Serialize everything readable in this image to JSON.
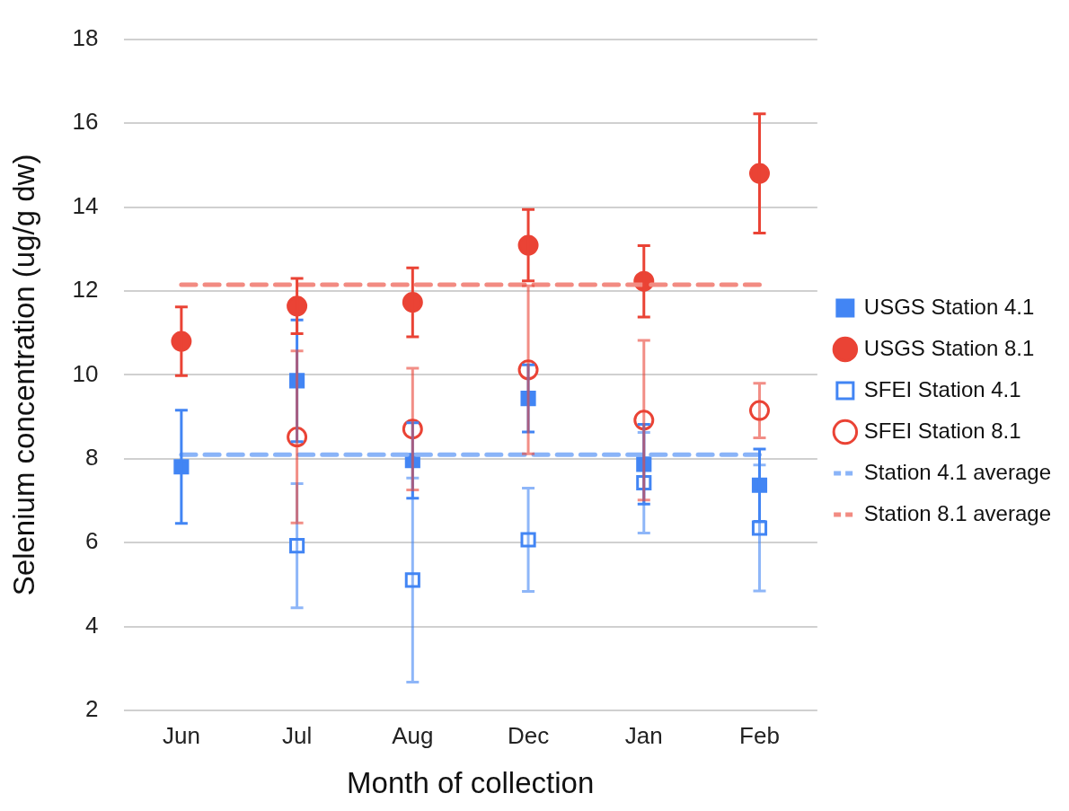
{
  "chart_data": {
    "type": "scatter",
    "xlabel": "Month of collection",
    "ylabel": "Selenium concentration (ug/g dw)",
    "categories": [
      "Jun",
      "Jul",
      "Aug",
      "Dec",
      "Jan",
      "Feb"
    ],
    "ylim": [
      2,
      18
    ],
    "yticks": [
      2,
      4,
      6,
      8,
      10,
      12,
      14,
      16,
      18
    ],
    "grid": "y",
    "legend": "right",
    "series": [
      {
        "name": "USGS Station 4.1",
        "color": "#4285f4",
        "marker": "square",
        "values": [
          7.81,
          9.86,
          7.96,
          9.44,
          7.87,
          7.37
        ],
        "errors": [
          1.35,
          1.45,
          0.9,
          0.8,
          0.95,
          0.86
        ]
      },
      {
        "name": "USGS Station 8.1",
        "color": "#ea4335",
        "marker": "circle",
        "values": [
          10.8,
          11.64,
          11.73,
          13.09,
          12.23,
          14.8
        ],
        "errors": [
          0.82,
          0.66,
          0.82,
          0.85,
          0.85,
          1.42
        ]
      },
      {
        "name": "SFEI Station 4.1",
        "color": "#4285f4",
        "marker": "square-open",
        "values": [
          null,
          5.93,
          5.11,
          6.07,
          7.43,
          6.35
        ],
        "errors": [
          null,
          1.48,
          2.43,
          1.23,
          1.2,
          1.5
        ]
      },
      {
        "name": "SFEI Station 8.1",
        "color": "#ea4335",
        "marker": "circle-open",
        "values": [
          null,
          8.52,
          8.71,
          10.12,
          8.92,
          9.15
        ],
        "errors": [
          null,
          2.05,
          1.45,
          2.0,
          1.9,
          0.65
        ]
      },
      {
        "name": "Station 4.1 average",
        "type": "line",
        "color": "#8ab4f8",
        "marker": "none",
        "line_style": "dashed",
        "values": [
          8.1,
          8.1,
          8.1,
          8.1,
          8.1,
          8.1
        ]
      },
      {
        "name": "Station 8.1 average",
        "type": "line",
        "color": "#f28b82",
        "marker": "none",
        "line_style": "dashed",
        "values": [
          12.15,
          12.15,
          12.15,
          12.15,
          12.15,
          12.15
        ]
      }
    ]
  }
}
